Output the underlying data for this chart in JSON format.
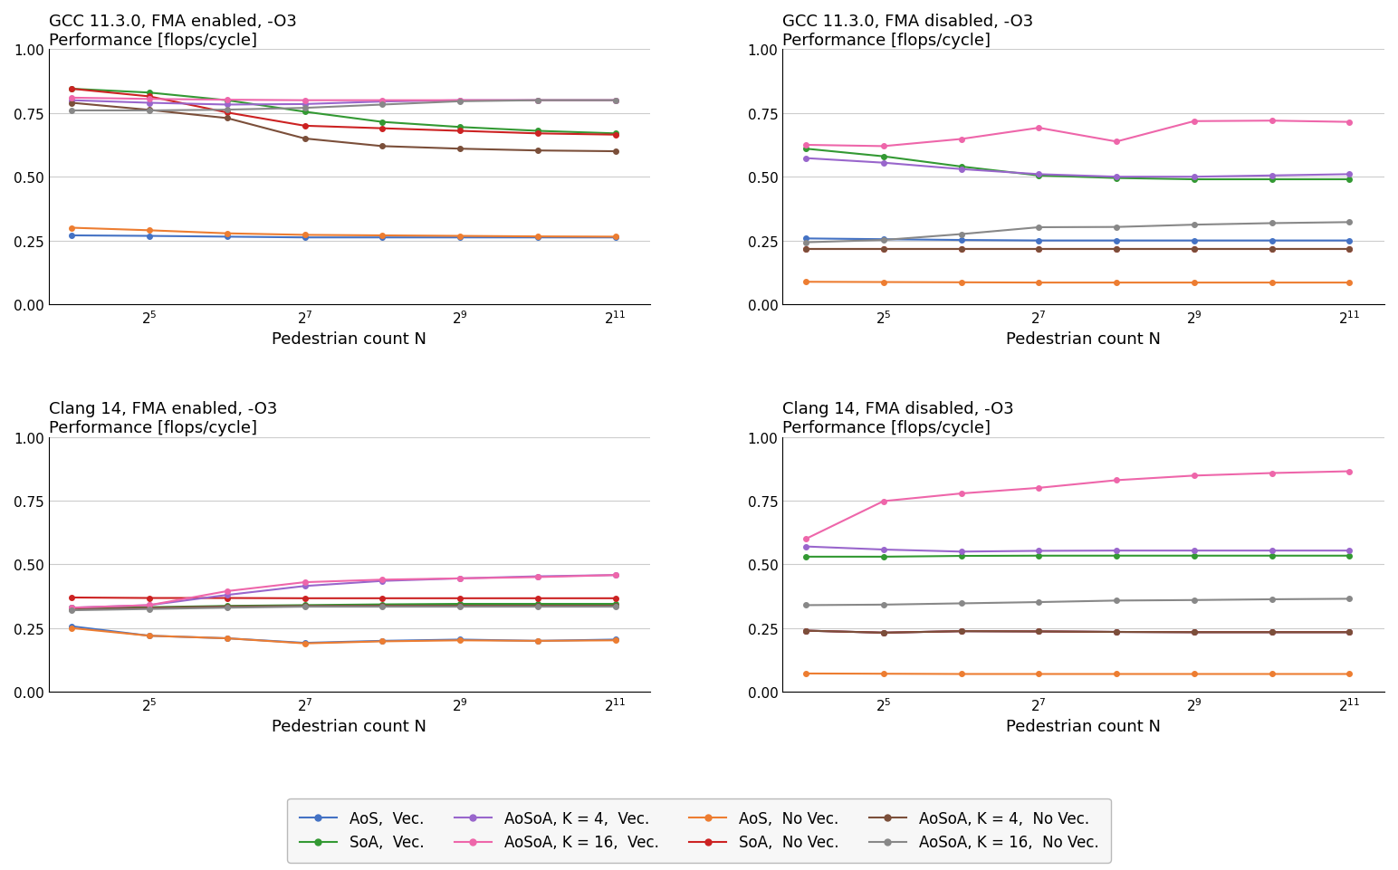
{
  "x_values": [
    16,
    32,
    64,
    128,
    256,
    512,
    1024,
    2048
  ],
  "x_ticks": [
    32,
    128,
    512,
    2048
  ],
  "x_tick_labels": [
    "$2^{5}$",
    "$2^{7}$",
    "$2^{9}$",
    "$2^{11}$"
  ],
  "x_lim": [
    13,
    2800
  ],
  "subplots": [
    {
      "title": "GCC 11.3.0, FMA enabled, -O3\nPerformance [flops/cycle]",
      "series": {
        "AoS_Vec": [
          0.27,
          0.268,
          0.265,
          0.262,
          0.262,
          0.262,
          0.262,
          0.262
        ],
        "AoS_NoVec": [
          0.3,
          0.29,
          0.278,
          0.272,
          0.27,
          0.268,
          0.266,
          0.265
        ],
        "SoA_Vec": [
          0.845,
          0.83,
          0.8,
          0.755,
          0.715,
          0.695,
          0.68,
          0.67
        ],
        "SoA_NoVec": [
          0.845,
          0.815,
          0.752,
          0.7,
          0.69,
          0.68,
          0.67,
          0.665
        ],
        "AoSoA4_Vec": [
          0.8,
          0.79,
          0.783,
          0.785,
          0.795,
          0.8,
          0.8,
          0.8
        ],
        "AoSoA4_NoVec": [
          0.79,
          0.762,
          0.73,
          0.65,
          0.62,
          0.61,
          0.603,
          0.6
        ],
        "AoSoA16_Vec": [
          0.81,
          0.805,
          0.802,
          0.8,
          0.8,
          0.8,
          0.8,
          0.8
        ],
        "AoSoA16_NoVec": [
          0.76,
          0.76,
          0.763,
          0.77,
          0.783,
          0.796,
          0.8,
          0.8
        ]
      }
    },
    {
      "title": "GCC 11.3.0, FMA disabled, -O3\nPerformance [flops/cycle]",
      "series": {
        "AoS_Vec": [
          0.258,
          0.255,
          0.252,
          0.25,
          0.25,
          0.25,
          0.25,
          0.25
        ],
        "AoS_NoVec": [
          0.088,
          0.087,
          0.086,
          0.085,
          0.085,
          0.085,
          0.085,
          0.085
        ],
        "SoA_Vec": [
          0.61,
          0.58,
          0.54,
          0.505,
          0.495,
          0.49,
          0.49,
          0.49
        ],
        "SoA_NoVec": [
          0.215,
          0.215,
          0.215,
          0.215,
          0.215,
          0.215,
          0.215,
          0.215
        ],
        "AoSoA4_Vec": [
          0.573,
          0.555,
          0.53,
          0.51,
          0.5,
          0.5,
          0.505,
          0.51
        ],
        "AoSoA4_NoVec": [
          0.215,
          0.215,
          0.215,
          0.215,
          0.215,
          0.215,
          0.215,
          0.215
        ],
        "AoSoA16_Vec": [
          0.625,
          0.62,
          0.648,
          0.692,
          0.638,
          0.718,
          0.72,
          0.715
        ],
        "AoSoA16_NoVec": [
          0.243,
          0.252,
          0.275,
          0.302,
          0.303,
          0.312,
          0.318,
          0.322
        ]
      }
    },
    {
      "title": "Clang 14, FMA enabled, -O3\nPerformance [flops/cycle]",
      "series": {
        "AoS_Vec": [
          0.257,
          0.22,
          0.21,
          0.192,
          0.2,
          0.205,
          0.2,
          0.205
        ],
        "AoS_NoVec": [
          0.25,
          0.22,
          0.21,
          0.19,
          0.198,
          0.202,
          0.2,
          0.202
        ],
        "SoA_Vec": [
          0.33,
          0.332,
          0.337,
          0.34,
          0.343,
          0.345,
          0.345,
          0.345
        ],
        "SoA_NoVec": [
          0.37,
          0.368,
          0.368,
          0.367,
          0.367,
          0.367,
          0.367,
          0.367
        ],
        "AoSoA4_Vec": [
          0.33,
          0.34,
          0.38,
          0.415,
          0.435,
          0.445,
          0.453,
          0.458
        ],
        "AoSoA4_NoVec": [
          0.323,
          0.33,
          0.335,
          0.337,
          0.338,
          0.338,
          0.338,
          0.338
        ],
        "AoSoA16_Vec": [
          0.33,
          0.34,
          0.395,
          0.43,
          0.44,
          0.445,
          0.45,
          0.458
        ],
        "AoSoA16_NoVec": [
          0.32,
          0.325,
          0.33,
          0.334,
          0.334,
          0.334,
          0.334,
          0.334
        ]
      }
    },
    {
      "title": "Clang 14, FMA disabled, -O3\nPerformance [flops/cycle]",
      "series": {
        "AoS_Vec": [
          0.24,
          0.232,
          0.238,
          0.237,
          0.235,
          0.234,
          0.234,
          0.234
        ],
        "AoS_NoVec": [
          0.072,
          0.071,
          0.07,
          0.07,
          0.07,
          0.07,
          0.07,
          0.07
        ],
        "SoA_Vec": [
          0.53,
          0.53,
          0.533,
          0.534,
          0.534,
          0.534,
          0.534,
          0.534
        ],
        "SoA_NoVec": [
          0.24,
          0.232,
          0.238,
          0.237,
          0.235,
          0.234,
          0.234,
          0.234
        ],
        "AoSoA4_Vec": [
          0.57,
          0.558,
          0.55,
          0.553,
          0.554,
          0.554,
          0.554,
          0.554
        ],
        "AoSoA4_NoVec": [
          0.24,
          0.232,
          0.238,
          0.237,
          0.235,
          0.234,
          0.234,
          0.234
        ],
        "AoSoA16_Vec": [
          0.6,
          0.748,
          0.778,
          0.8,
          0.83,
          0.848,
          0.858,
          0.865
        ],
        "AoSoA16_NoVec": [
          0.34,
          0.342,
          0.347,
          0.352,
          0.358,
          0.36,
          0.363,
          0.365
        ]
      }
    }
  ],
  "colors": {
    "AoS_Vec": "#4472c4",
    "AoS_NoVec": "#ed7d31",
    "SoA_Vec": "#339933",
    "SoA_NoVec": "#cc2222",
    "AoSoA4_Vec": "#9966cc",
    "AoSoA4_NoVec": "#7b4f3a",
    "AoSoA16_Vec": "#ee66aa",
    "AoSoA16_NoVec": "#888888"
  },
  "legend_entries": [
    {
      "label": "AoS,  Vec.",
      "key": "AoS_Vec"
    },
    {
      "label": "SoA,  Vec.",
      "key": "SoA_Vec"
    },
    {
      "label": "AoSoA, K = 4,  Vec.",
      "key": "AoSoA4_Vec"
    },
    {
      "label": "AoSoA, K = 16,  Vec.",
      "key": "AoSoA16_Vec"
    },
    {
      "label": "AoS,  No Vec.",
      "key": "AoS_NoVec"
    },
    {
      "label": "SoA,  No Vec.",
      "key": "SoA_NoVec"
    },
    {
      "label": "AoSoA, K = 4,  No Vec.",
      "key": "AoSoA4_NoVec"
    },
    {
      "label": "AoSoA, K = 16,  No Vec.",
      "key": "AoSoA16_NoVec"
    }
  ]
}
